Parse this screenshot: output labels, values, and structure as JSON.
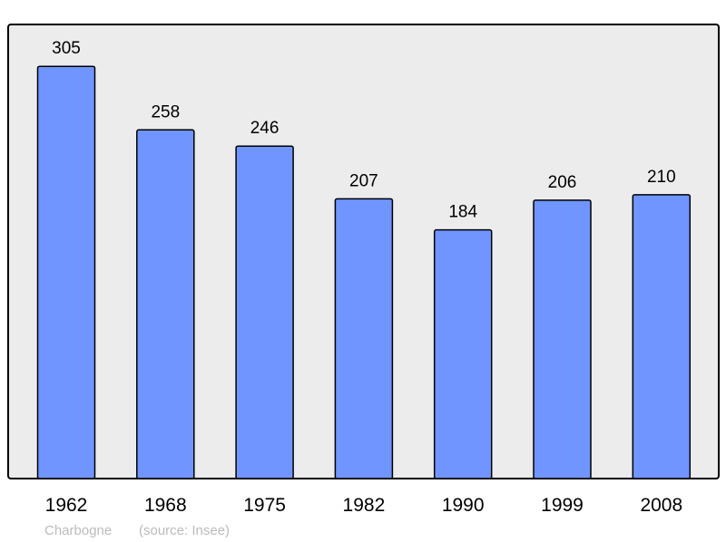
{
  "chart_data": {
    "type": "bar",
    "categories": [
      "1962",
      "1968",
      "1975",
      "1982",
      "1990",
      "1999",
      "2008"
    ],
    "values": [
      305,
      258,
      246,
      207,
      184,
      206,
      210
    ],
    "title": "",
    "xlabel": "",
    "ylabel": "",
    "ylim": [
      0,
      336
    ],
    "grid": false,
    "data_labels": true,
    "colors": {
      "bar": "#7095ff",
      "plot_background": "#ececec",
      "border": "#000000",
      "footer_text": "#bbbbbb"
    }
  },
  "footer": {
    "place": "Charbogne",
    "source": "(source: Insee)"
  }
}
